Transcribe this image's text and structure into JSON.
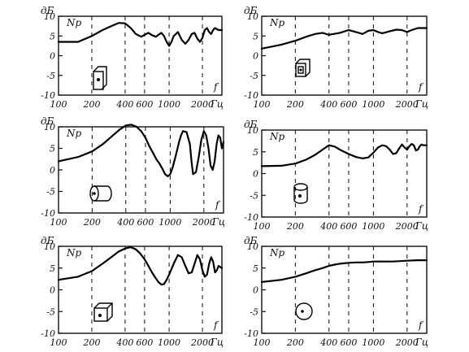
{
  "chart_data": [
    {
      "type": "line",
      "icon": "box-front-dot-icon",
      "ylabel_unit": "дБ",
      "series_label": "Np",
      "xlabel_unit": "Гц",
      "corner_label": "f",
      "xscale": "log",
      "xlim": [
        100,
        3000
      ],
      "ylim": [
        -10,
        10
      ],
      "xticks": [
        "100",
        "200",
        "400",
        "600",
        "1000",
        "2000"
      ],
      "yticks": [
        "10",
        "5",
        "0",
        "-5",
        "-10"
      ],
      "x": [
        100,
        150,
        200,
        250,
        300,
        350,
        400,
        450,
        500,
        560,
        600,
        650,
        700,
        760,
        800,
        850,
        900,
        950,
        1000,
        1050,
        1100,
        1200,
        1300,
        1400,
        1500,
        1600,
        1700,
        1800,
        1900,
        2000,
        2100,
        2200,
        2300,
        2400,
        2500,
        2600,
        2800,
        3000
      ],
      "values": [
        3.5,
        3.5,
        5.0,
        6.5,
        7.5,
        8.3,
        8.2,
        7.0,
        5.5,
        4.8,
        5.3,
        5.8,
        5.2,
        4.8,
        5.3,
        5.8,
        5.0,
        3.5,
        2.5,
        3.5,
        5.0,
        6.0,
        4.0,
        3.0,
        4.0,
        5.5,
        5.8,
        4.3,
        3.5,
        4.5,
        6.5,
        7.0,
        6.0,
        5.5,
        6.5,
        7.0,
        6.5,
        6.5
      ]
    },
    {
      "type": "line",
      "icon": "box-dot-icon",
      "ylabel_unit": "дБ",
      "series_label": "Np",
      "xlabel_unit": "Гц",
      "corner_label": "f",
      "xscale": "log",
      "xlim": [
        100,
        3000
      ],
      "ylim": [
        -10,
        10
      ],
      "xticks": [
        "100",
        "200",
        "400",
        "600",
        "1000",
        "2000"
      ],
      "yticks": [
        "10",
        "5",
        "0",
        "-5",
        "-10"
      ],
      "x": [
        100,
        150,
        200,
        250,
        300,
        350,
        400,
        500,
        600,
        700,
        800,
        900,
        1000,
        1100,
        1200,
        1400,
        1600,
        1800,
        2000,
        2200,
        2500,
        3000
      ],
      "values": [
        1.8,
        2.8,
        3.8,
        4.8,
        5.5,
        5.8,
        5.3,
        5.8,
        6.5,
        6.0,
        5.5,
        6.3,
        6.5,
        6.0,
        5.7,
        6.2,
        6.6,
        6.5,
        6.0,
        6.5,
        7.0,
        7.0
      ]
    },
    {
      "type": "line",
      "icon": "cylinder-side-dot-icon",
      "ylabel_unit": "дБ",
      "series_label": "Np",
      "xlabel_unit": "Гц",
      "corner_label": "f",
      "xscale": "log",
      "xlim": [
        100,
        3000
      ],
      "ylim": [
        -10,
        10
      ],
      "xticks": [
        "100",
        "200",
        "400",
        "600",
        "1000",
        "2000"
      ],
      "yticks": [
        "10",
        "5",
        "0",
        "-5",
        "-10"
      ],
      "x": [
        100,
        150,
        200,
        250,
        300,
        350,
        400,
        450,
        500,
        550,
        600,
        650,
        700,
        750,
        800,
        850,
        900,
        950,
        1000,
        1050,
        1100,
        1150,
        1200,
        1250,
        1300,
        1400,
        1500,
        1550,
        1600,
        1700,
        1800,
        1900,
        2000,
        2100,
        2200,
        2300,
        2400,
        2500,
        2600,
        2700,
        2800,
        2900,
        3000
      ],
      "values": [
        2.0,
        3.0,
        4.3,
        6.0,
        7.8,
        9.3,
        10.3,
        10.5,
        10.0,
        9.0,
        7.5,
        5.5,
        4.0,
        2.5,
        1.5,
        0.3,
        -1.0,
        -1.5,
        -1.0,
        0.5,
        2.5,
        4.5,
        6.5,
        8.0,
        9.0,
        8.8,
        6.0,
        2.0,
        -1.0,
        -0.5,
        3.0,
        7.0,
        9.0,
        8.0,
        5.0,
        1.0,
        0.0,
        2.0,
        6.0,
        8.0,
        7.5,
        5.0,
        6.5
      ]
    },
    {
      "type": "line",
      "icon": "cylinder-upright-dot-icon",
      "ylabel_unit": "дБ",
      "series_label": "Np",
      "xlabel_unit": "Гц",
      "corner_label": "f",
      "xscale": "log",
      "xlim": [
        100,
        3000
      ],
      "ylim": [
        -10,
        10
      ],
      "xticks": [
        "100",
        "200",
        "400",
        "600",
        "1000",
        "2000"
      ],
      "yticks": [
        "10",
        "5",
        "0",
        "-5",
        "-10"
      ],
      "x": [
        100,
        150,
        200,
        250,
        300,
        350,
        400,
        450,
        500,
        600,
        700,
        800,
        900,
        1000,
        1100,
        1200,
        1300,
        1400,
        1500,
        1600,
        1700,
        1800,
        1900,
        2000,
        2100,
        2200,
        2300,
        2400,
        2500,
        2600,
        2700,
        2800,
        3000
      ],
      "values": [
        1.7,
        1.8,
        2.3,
        3.2,
        4.3,
        5.5,
        6.5,
        6.2,
        5.5,
        4.5,
        3.8,
        3.5,
        3.7,
        4.8,
        6.0,
        6.5,
        6.3,
        5.5,
        4.5,
        4.7,
        5.8,
        6.7,
        6.0,
        5.5,
        6.3,
        6.8,
        6.5,
        5.3,
        5.5,
        6.3,
        6.7,
        6.5,
        6.5
      ]
    },
    {
      "type": "line",
      "icon": "cube-dot-icon",
      "ylabel_unit": "дБ",
      "series_label": "Np",
      "xlabel_unit": "Гц",
      "corner_label": "f",
      "xscale": "log",
      "xlim": [
        100,
        3000
      ],
      "ylim": [
        -10,
        10
      ],
      "xticks": [
        "100",
        "200",
        "400",
        "600",
        "1000",
        "2000"
      ],
      "yticks": [
        "10",
        "5",
        "0",
        "-5",
        "-10"
      ],
      "x": [
        100,
        150,
        200,
        250,
        300,
        350,
        400,
        450,
        500,
        550,
        600,
        650,
        700,
        750,
        800,
        850,
        900,
        950,
        1000,
        1100,
        1200,
        1300,
        1400,
        1500,
        1600,
        1700,
        1800,
        1900,
        2000,
        2100,
        2200,
        2300,
        2400,
        2500,
        2600,
        2700,
        2800,
        3000
      ],
      "values": [
        2.3,
        3.0,
        4.3,
        6.0,
        7.5,
        8.8,
        9.5,
        9.8,
        9.3,
        8.3,
        7.0,
        5.5,
        4.0,
        2.8,
        1.8,
        1.2,
        1.3,
        2.3,
        3.5,
        6.0,
        8.0,
        7.5,
        5.5,
        3.8,
        4.0,
        6.0,
        8.0,
        7.0,
        4.5,
        3.0,
        3.5,
        6.0,
        7.5,
        6.5,
        4.0,
        4.5,
        5.5,
        5.0
      ]
    },
    {
      "type": "line",
      "icon": "sphere-dot-icon",
      "ylabel_unit": "дБ",
      "series_label": "Np",
      "xlabel_unit": "Гц",
      "corner_label": "f",
      "xscale": "log",
      "xlim": [
        100,
        3000
      ],
      "ylim": [
        -10,
        10
      ],
      "xticks": [
        "100",
        "200",
        "400",
        "600",
        "1000",
        "2000"
      ],
      "yticks": [
        "10",
        "5",
        "0",
        "-5",
        "-10"
      ],
      "x": [
        100,
        150,
        200,
        250,
        300,
        350,
        400,
        450,
        500,
        600,
        700,
        800,
        900,
        1000,
        1200,
        1500,
        2000,
        2500,
        3000
      ],
      "values": [
        1.8,
        2.3,
        3.0,
        3.8,
        4.5,
        5.0,
        5.5,
        5.8,
        6.0,
        6.2,
        6.3,
        6.3,
        6.4,
        6.5,
        6.5,
        6.5,
        6.7,
        6.8,
        6.8
      ]
    }
  ]
}
